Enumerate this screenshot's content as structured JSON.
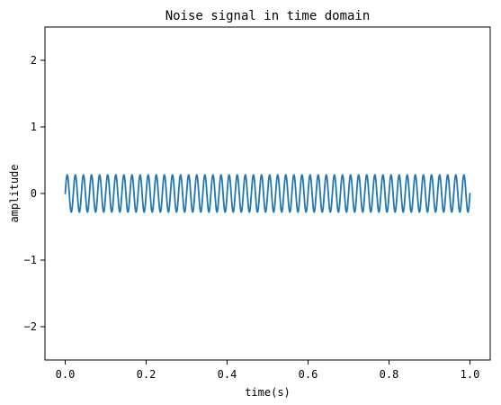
{
  "chart_data": {
    "type": "line",
    "title": "Noise signal in time domain",
    "xlabel": "time(s)",
    "ylabel": "amplitude",
    "xlim": [
      -0.05,
      1.05
    ],
    "ylim": [
      -2.5,
      2.5
    ],
    "x_ticks": [
      0.0,
      0.2,
      0.4,
      0.6,
      0.8,
      1.0
    ],
    "x_tick_labels": [
      "0.0",
      "0.2",
      "0.4",
      "0.6",
      "0.8",
      "1.0"
    ],
    "y_ticks": [
      2,
      1,
      0,
      -1,
      -2
    ],
    "y_tick_labels": [
      "2",
      "1",
      "0",
      "−1",
      "−2"
    ],
    "grid": false,
    "legend": "none",
    "series": [
      {
        "color": "#1f77b4",
        "x_start": 0.0,
        "x_end": 1.0,
        "amplitude": 0.28,
        "frequency_hz": 50,
        "phase_rad": 0,
        "waveform": "sine"
      }
    ]
  }
}
